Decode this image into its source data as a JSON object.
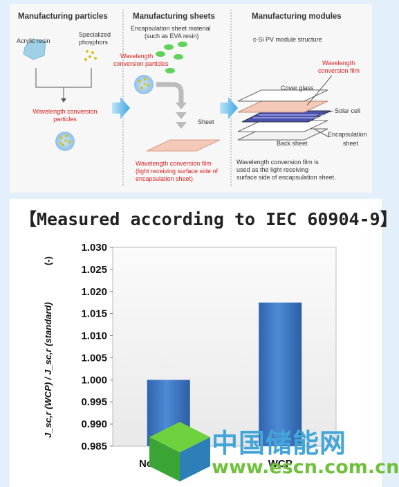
{
  "diagram": {
    "col1": {
      "heading": "Manufacturing particles",
      "acrylic": "Acrylic resin",
      "phosphors_1": "Specialized",
      "phosphors_2": "phosphors",
      "wcp_1": "Wavelength conversion",
      "wcp_2": "particles"
    },
    "col2": {
      "heading": "Manufacturing sheets",
      "material_1": "Encapsulation sheet material",
      "material_2": "(such as EVA resin)",
      "wcp_1": "Wavelength",
      "wcp_2": "conversion particles",
      "sheet": "Sheet",
      "film_1": "Wavelength conversion film",
      "film_2": "(light receiving surface side of",
      "film_3": "encapsulation sheet)"
    },
    "col3": {
      "heading": "Manufacturing modules",
      "structure": "c-Si PV module structure",
      "wcf_1": "Wavelength",
      "wcf_2": "conversion film",
      "cover_glass": "Cover glass",
      "solar_cell": "Solar cell",
      "encap_1": "Encapsulation",
      "encap_2": "sheet",
      "back_sheet": "Back sheet",
      "note_1": "Wavelength conversion film is",
      "note_2": "used as the light receiving",
      "note_3": "surface side of encapsulation sheet."
    }
  },
  "chart_data": {
    "type": "bar",
    "title": "【Measured according to IEC 60904-9】",
    "ylabel": "J_sc,r (WCP) / J_sc,r (standard)",
    "yunit": "(-)",
    "categories": [
      "Normal EVA",
      "WCP"
    ],
    "values": [
      1.0,
      1.0175
    ],
    "ylim": [
      0.985,
      1.03
    ],
    "yticks": [
      "1.030",
      "1.025",
      "1.020",
      "1.015",
      "1.010",
      "1.005",
      "1.000",
      "0.995",
      "0.990",
      "0.985"
    ],
    "bar_color": "#3f7bc8"
  },
  "watermark": {
    "cn": "中国储能网",
    "url": "www.escn.com.cn"
  }
}
